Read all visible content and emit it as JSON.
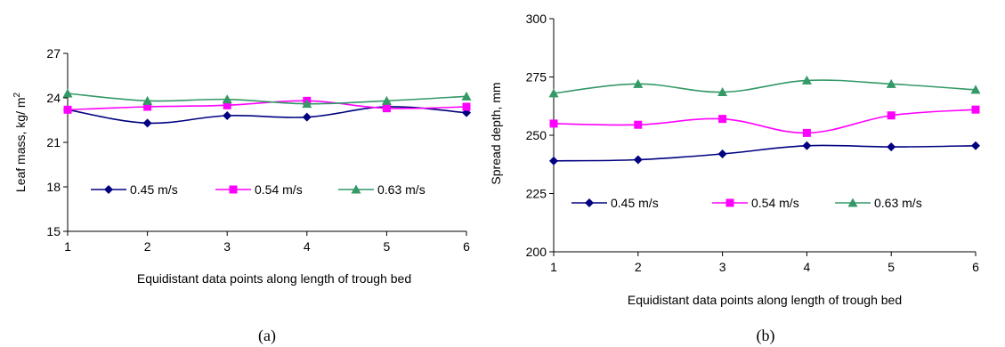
{
  "colors": {
    "axis": "#000000",
    "series": [
      "#000080",
      "#FF00FF",
      "#339966"
    ]
  },
  "chart_data": [
    {
      "type": "line",
      "panel_label": "(a)",
      "xlabel": "Equidistant data points along length of trough bed",
      "ylabel": "Leaf mass, kg/ m",
      "ylabel_sup": "2",
      "x": [
        1,
        2,
        3,
        4,
        5,
        6
      ],
      "xlim": [
        1,
        6
      ],
      "ylim": [
        15,
        27
      ],
      "yticks": [
        "15",
        "18",
        "21",
        "24",
        "27"
      ],
      "xticks": [
        "1",
        "2",
        "3",
        "4",
        "5",
        "6"
      ],
      "grid": false,
      "legend_position": "lower-center",
      "series": [
        {
          "name": "0.45 m/s",
          "marker": "diamond",
          "values": [
            23.2,
            22.3,
            22.8,
            22.7,
            23.4,
            23.0
          ]
        },
        {
          "name": "0.54 m/s",
          "marker": "square",
          "values": [
            23.2,
            23.4,
            23.5,
            23.8,
            23.3,
            23.4
          ]
        },
        {
          "name": "0.63 m/s",
          "marker": "triangle",
          "values": [
            24.3,
            23.8,
            23.9,
            23.6,
            23.8,
            24.1
          ]
        }
      ]
    },
    {
      "type": "line",
      "panel_label": "(b)",
      "xlabel": "Equidistant data points along length of trough bed",
      "ylabel": "Spread depth, mm",
      "x": [
        1,
        2,
        3,
        4,
        5,
        6
      ],
      "xlim": [
        1,
        6
      ],
      "ylim": [
        200,
        300
      ],
      "yticks": [
        "200",
        "225",
        "250",
        "275",
        "300"
      ],
      "xticks": [
        "1",
        "2",
        "3",
        "4",
        "5",
        "6"
      ],
      "grid": false,
      "legend_position": "lower-center",
      "series": [
        {
          "name": "0.45 m/s",
          "marker": "diamond",
          "values": [
            239,
            239.5,
            242,
            245.5,
            245,
            245.5
          ]
        },
        {
          "name": "0.54 m/s",
          "marker": "square",
          "values": [
            255,
            254.5,
            257,
            251,
            258.5,
            261
          ]
        },
        {
          "name": "0.63 m/s",
          "marker": "triangle",
          "values": [
            268,
            272,
            268.5,
            273.5,
            272,
            269.5
          ]
        }
      ]
    }
  ]
}
